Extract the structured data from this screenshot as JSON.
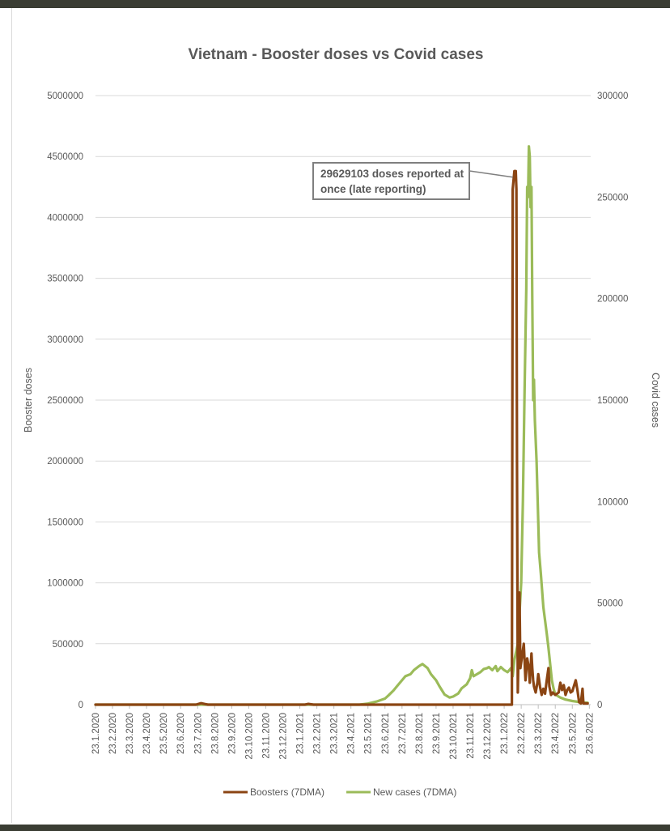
{
  "chart_data": {
    "type": "line",
    "title": "Vietnam - Booster doses vs Covid cases",
    "ylabel": "Booster doses",
    "y2label": "Covid cases",
    "ylim": [
      0,
      5000000
    ],
    "y2lim": [
      0,
      300000
    ],
    "yticks": [
      "0",
      "500000",
      "1000000",
      "1500000",
      "2000000",
      "2500000",
      "3000000",
      "3500000",
      "4000000",
      "4500000",
      "5000000"
    ],
    "y2ticks": [
      "0",
      "50000",
      "100000",
      "150000",
      "200000",
      "250000",
      "300000"
    ],
    "x_labels": [
      "23.1.2020",
      "23.2.2020",
      "23.3.2020",
      "23.4.2020",
      "23.5.2020",
      "23.6.2020",
      "23.7.2020",
      "23.8.2020",
      "23.9.2020",
      "23.10.2020",
      "23.11.2020",
      "23.12.2020",
      "23.1.2021",
      "23.2.2021",
      "23.3.2021",
      "23.4.2021",
      "23.5.2021",
      "23.6.2021",
      "23.7.2021",
      "23.8.2021",
      "23.9.2021",
      "23.10.2021",
      "23.11.2021",
      "23.12.2021",
      "23.1.2022",
      "23.2.2022",
      "23.3.2022",
      "23.4.2022",
      "23.5.2022",
      "23.6.2022"
    ],
    "x_unit": "months since 23.1.2020",
    "annotation": {
      "text_line1": "29629103 doses reported at",
      "text_line2": "once (late reporting)",
      "target_x": 24.65,
      "target_y": 4330000
    },
    "series": [
      {
        "name": "Boosters (7DMA)",
        "color": "#8b4513",
        "axis": "left",
        "points": [
          [
            0,
            0
          ],
          [
            5.9,
            0
          ],
          [
            6.2,
            12000
          ],
          [
            6.6,
            0
          ],
          [
            12.3,
            0
          ],
          [
            12.5,
            6000
          ],
          [
            12.8,
            0
          ],
          [
            24.45,
            0
          ],
          [
            24.5,
            4230000
          ],
          [
            24.6,
            4380000
          ],
          [
            24.68,
            4380000
          ],
          [
            24.72,
            4230000
          ],
          [
            24.75,
            2000000
          ],
          [
            24.8,
            100000
          ],
          [
            24.85,
            500000
          ],
          [
            24.9,
            920000
          ],
          [
            24.95,
            300000
          ],
          [
            25.05,
            400000
          ],
          [
            25.15,
            500000
          ],
          [
            25.25,
            200000
          ],
          [
            25.35,
            380000
          ],
          [
            25.45,
            300000
          ],
          [
            25.5,
            180000
          ],
          [
            25.6,
            420000
          ],
          [
            25.65,
            300000
          ],
          [
            25.7,
            200000
          ],
          [
            25.75,
            150000
          ],
          [
            25.85,
            100000
          ],
          [
            25.95,
            180000
          ],
          [
            26.0,
            250000
          ],
          [
            26.1,
            150000
          ],
          [
            26.2,
            80000
          ],
          [
            26.3,
            130000
          ],
          [
            26.4,
            90000
          ],
          [
            26.5,
            200000
          ],
          [
            26.6,
            300000
          ],
          [
            26.65,
            150000
          ],
          [
            26.75,
            80000
          ],
          [
            26.85,
            100000
          ],
          [
            27.0,
            80000
          ],
          [
            27.2,
            100000
          ],
          [
            27.3,
            180000
          ],
          [
            27.4,
            120000
          ],
          [
            27.5,
            160000
          ],
          [
            27.6,
            80000
          ],
          [
            27.7,
            120000
          ],
          [
            27.8,
            140000
          ],
          [
            27.9,
            100000
          ],
          [
            28.0,
            110000
          ],
          [
            28.2,
            200000
          ],
          [
            28.3,
            120000
          ],
          [
            28.4,
            20000
          ],
          [
            28.5,
            10000
          ],
          [
            28.6,
            130000
          ],
          [
            28.65,
            10000
          ],
          [
            28.9,
            10000
          ]
        ]
      },
      {
        "name": "New cases (7DMA)",
        "color": "#9bbb59",
        "axis": "right",
        "points": [
          [
            0,
            0
          ],
          [
            15.5,
            0
          ],
          [
            16.0,
            500
          ],
          [
            16.5,
            1500
          ],
          [
            17.0,
            3000
          ],
          [
            17.2,
            4500
          ],
          [
            17.5,
            7000
          ],
          [
            17.7,
            9000
          ],
          [
            18.0,
            12000
          ],
          [
            18.2,
            14000
          ],
          [
            18.5,
            15000
          ],
          [
            18.7,
            17000
          ],
          [
            19.0,
            19000
          ],
          [
            19.2,
            20000
          ],
          [
            19.5,
            18000
          ],
          [
            19.7,
            15000
          ],
          [
            20.0,
            12000
          ],
          [
            20.2,
            9000
          ],
          [
            20.5,
            5000
          ],
          [
            20.8,
            3500
          ],
          [
            21.0,
            4000
          ],
          [
            21.3,
            5500
          ],
          [
            21.5,
            8000
          ],
          [
            21.8,
            10000
          ],
          [
            22.0,
            13000
          ],
          [
            22.1,
            17000
          ],
          [
            22.2,
            14000
          ],
          [
            22.4,
            15000
          ],
          [
            22.6,
            16000
          ],
          [
            22.8,
            17500
          ],
          [
            23.0,
            18000
          ],
          [
            23.1,
            18500
          ],
          [
            23.3,
            17000
          ],
          [
            23.5,
            19000
          ],
          [
            23.6,
            16500
          ],
          [
            23.8,
            18500
          ],
          [
            24.0,
            17000
          ],
          [
            24.2,
            16000
          ],
          [
            24.4,
            18000
          ],
          [
            24.5,
            14000
          ],
          [
            24.6,
            22000
          ],
          [
            24.8,
            30000
          ],
          [
            24.9,
            45000
          ],
          [
            25.0,
            60000
          ],
          [
            25.1,
            100000
          ],
          [
            25.2,
            155000
          ],
          [
            25.3,
            205000
          ],
          [
            25.35,
            255000
          ],
          [
            25.4,
            250000
          ],
          [
            25.45,
            275000
          ],
          [
            25.5,
            270000
          ],
          [
            25.55,
            245000
          ],
          [
            25.6,
            255000
          ],
          [
            25.65,
            200000
          ],
          [
            25.7,
            150000
          ],
          [
            25.75,
            160000
          ],
          [
            25.8,
            140000
          ],
          [
            25.9,
            120000
          ],
          [
            26.0,
            90000
          ],
          [
            26.05,
            75000
          ],
          [
            26.15,
            65000
          ],
          [
            26.3,
            48000
          ],
          [
            26.5,
            35000
          ],
          [
            26.6,
            28000
          ],
          [
            26.7,
            20000
          ],
          [
            26.8,
            12000
          ],
          [
            26.9,
            8000
          ],
          [
            27.0,
            5000
          ],
          [
            27.3,
            3500
          ],
          [
            27.6,
            2500
          ],
          [
            28.0,
            1800
          ],
          [
            28.5,
            1200
          ],
          [
            28.9,
            900
          ]
        ]
      }
    ]
  }
}
